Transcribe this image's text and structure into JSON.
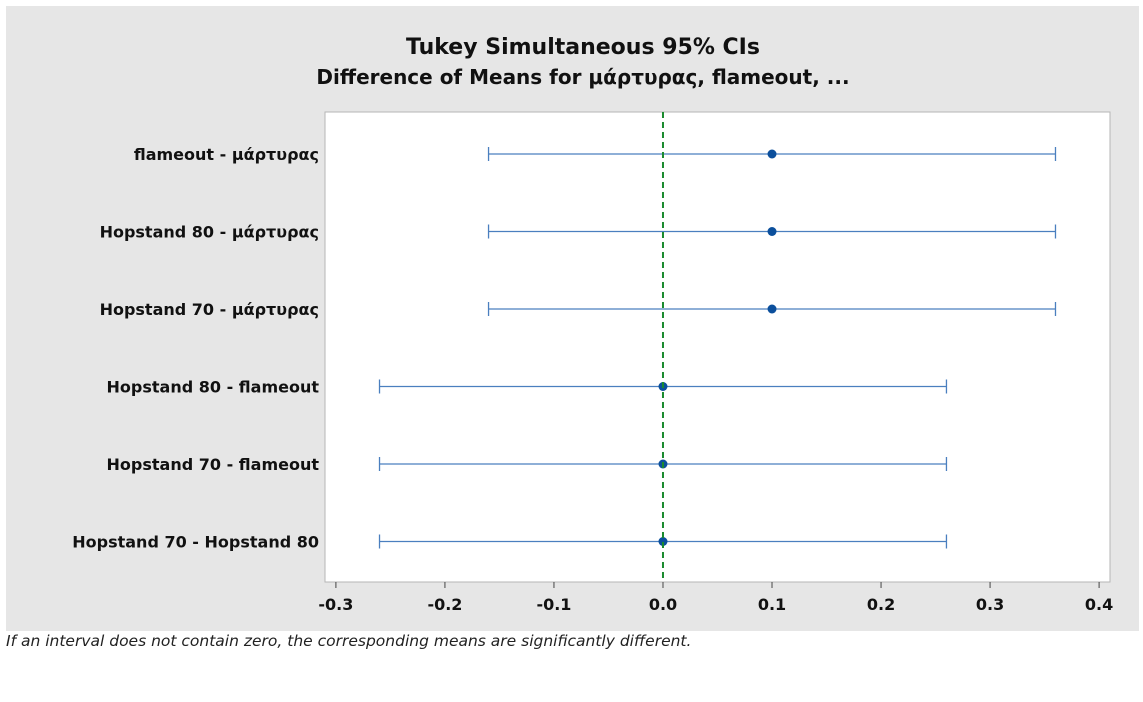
{
  "chart_data": {
    "type": "interval",
    "title": "Tukey Simultaneous 95% CIs",
    "subtitle": "Difference of Means for μάρτυρας, flameout, ...",
    "xlim": [
      -0.31,
      0.41
    ],
    "xticks": [
      -0.3,
      -0.2,
      -0.1,
      0.0,
      0.1,
      0.2,
      0.3,
      0.4
    ],
    "xtick_labels": [
      "-0.3",
      "-0.2",
      "-0.1",
      "0.0",
      "0.1",
      "0.2",
      "0.3",
      "0.4"
    ],
    "reference_line": 0.0,
    "reference_color": "#1a8a2e",
    "interval_color": "#4a7fbf",
    "point_color": "#0b4f9c",
    "rows": [
      {
        "label": "flameout - μάρτυρας",
        "mean": 0.1,
        "lower": -0.16,
        "upper": 0.36
      },
      {
        "label": "Hopstand 80 - μάρτυρας",
        "mean": 0.1,
        "lower": -0.16,
        "upper": 0.36
      },
      {
        "label": "Hopstand 70 - μάρτυρας",
        "mean": 0.1,
        "lower": -0.16,
        "upper": 0.36
      },
      {
        "label": "Hopstand 80 - flameout",
        "mean": 0.0,
        "lower": -0.26,
        "upper": 0.26
      },
      {
        "label": "Hopstand 70 - flameout",
        "mean": 0.0,
        "lower": -0.26,
        "upper": 0.26
      },
      {
        "label": "Hopstand 70 - Hopstand 80",
        "mean": 0.0,
        "lower": -0.26,
        "upper": 0.26
      }
    ]
  },
  "footnote": "If an interval does not contain zero, the corresponding means are significantly different."
}
